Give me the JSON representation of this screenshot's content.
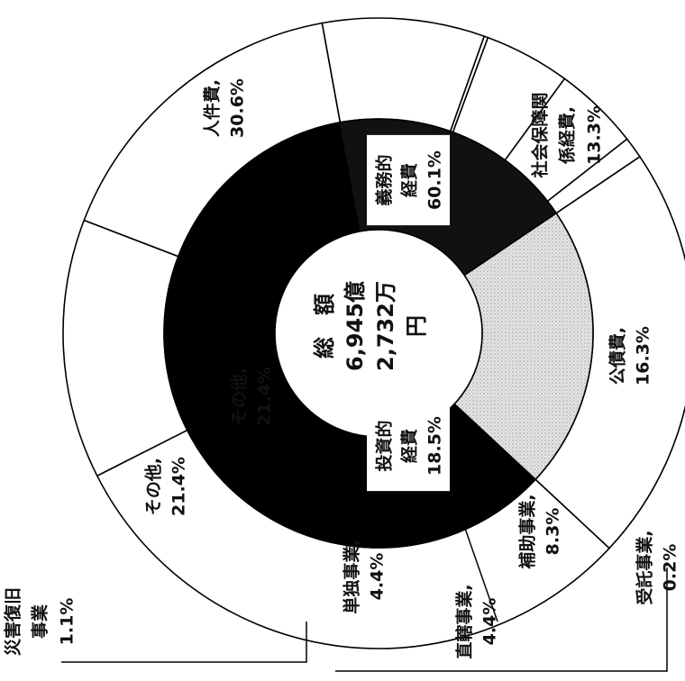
{
  "chart_data": [
    {
      "type": "pie",
      "ring": "outer",
      "center_label": [
        "総",
        "額",
        "6,945億",
        "2,732万",
        "円"
      ],
      "slices": [
        {
          "label": "人件費",
          "value": 30.6,
          "display": "30.6%"
        },
        {
          "label": "社会保障関係経費",
          "value": 13.3,
          "display": "13.3%"
        },
        {
          "label": "公債費",
          "value": 16.3,
          "display": "16.3%"
        },
        {
          "label": "補助事業",
          "value": 8.3,
          "display": "8.3%"
        },
        {
          "label": "受託事業",
          "value": 0.2,
          "display": "0.2%"
        },
        {
          "label": "直轄事業",
          "value": 4.4,
          "display": "4.4%"
        },
        {
          "label": "単独事業",
          "value": 4.4,
          "display": "4.4%"
        },
        {
          "label": "災害復旧事業",
          "value": 1.1,
          "display": "1.1%"
        },
        {
          "label": "その他",
          "value": 21.4,
          "display": "21.4%"
        }
      ]
    },
    {
      "type": "pie",
      "ring": "inner",
      "slices": [
        {
          "label": "義務的経費",
          "value": 60.1,
          "display": "60.1%",
          "color": "#000000"
        },
        {
          "label": "投資的経費",
          "value": 18.5,
          "display": "18.5%",
          "color": "#111111"
        },
        {
          "label": "その他",
          "value": 21.4,
          "display": "21.4%",
          "color": "#d9d9d9"
        }
      ]
    }
  ],
  "text": {
    "outer": {
      "jinken": [
        "人件費,",
        "30.6%"
      ],
      "shakai": [
        "社会保障関",
        "係経費,",
        "13.3%"
      ],
      "kousai": [
        "公債費,",
        "16.3%"
      ],
      "hojo": [
        "補助事業,",
        "8.3%"
      ],
      "jutaku": [
        "受託事業,",
        "0.2%"
      ],
      "chokkatsu": [
        "直轄事業,",
        "4.4%"
      ],
      "tandoku": [
        "単独事業,",
        "4.4%"
      ],
      "saigai": [
        "災害復旧",
        "事業",
        "1.1%"
      ],
      "sonota": [
        "その他,",
        "21.4%"
      ]
    },
    "inner": {
      "gimu": [
        "義務的",
        "経費",
        "60.1%"
      ],
      "toushi": [
        "投資的",
        "経費",
        "18.5%"
      ],
      "sonota": [
        "その他,",
        "21.4%"
      ]
    }
  }
}
